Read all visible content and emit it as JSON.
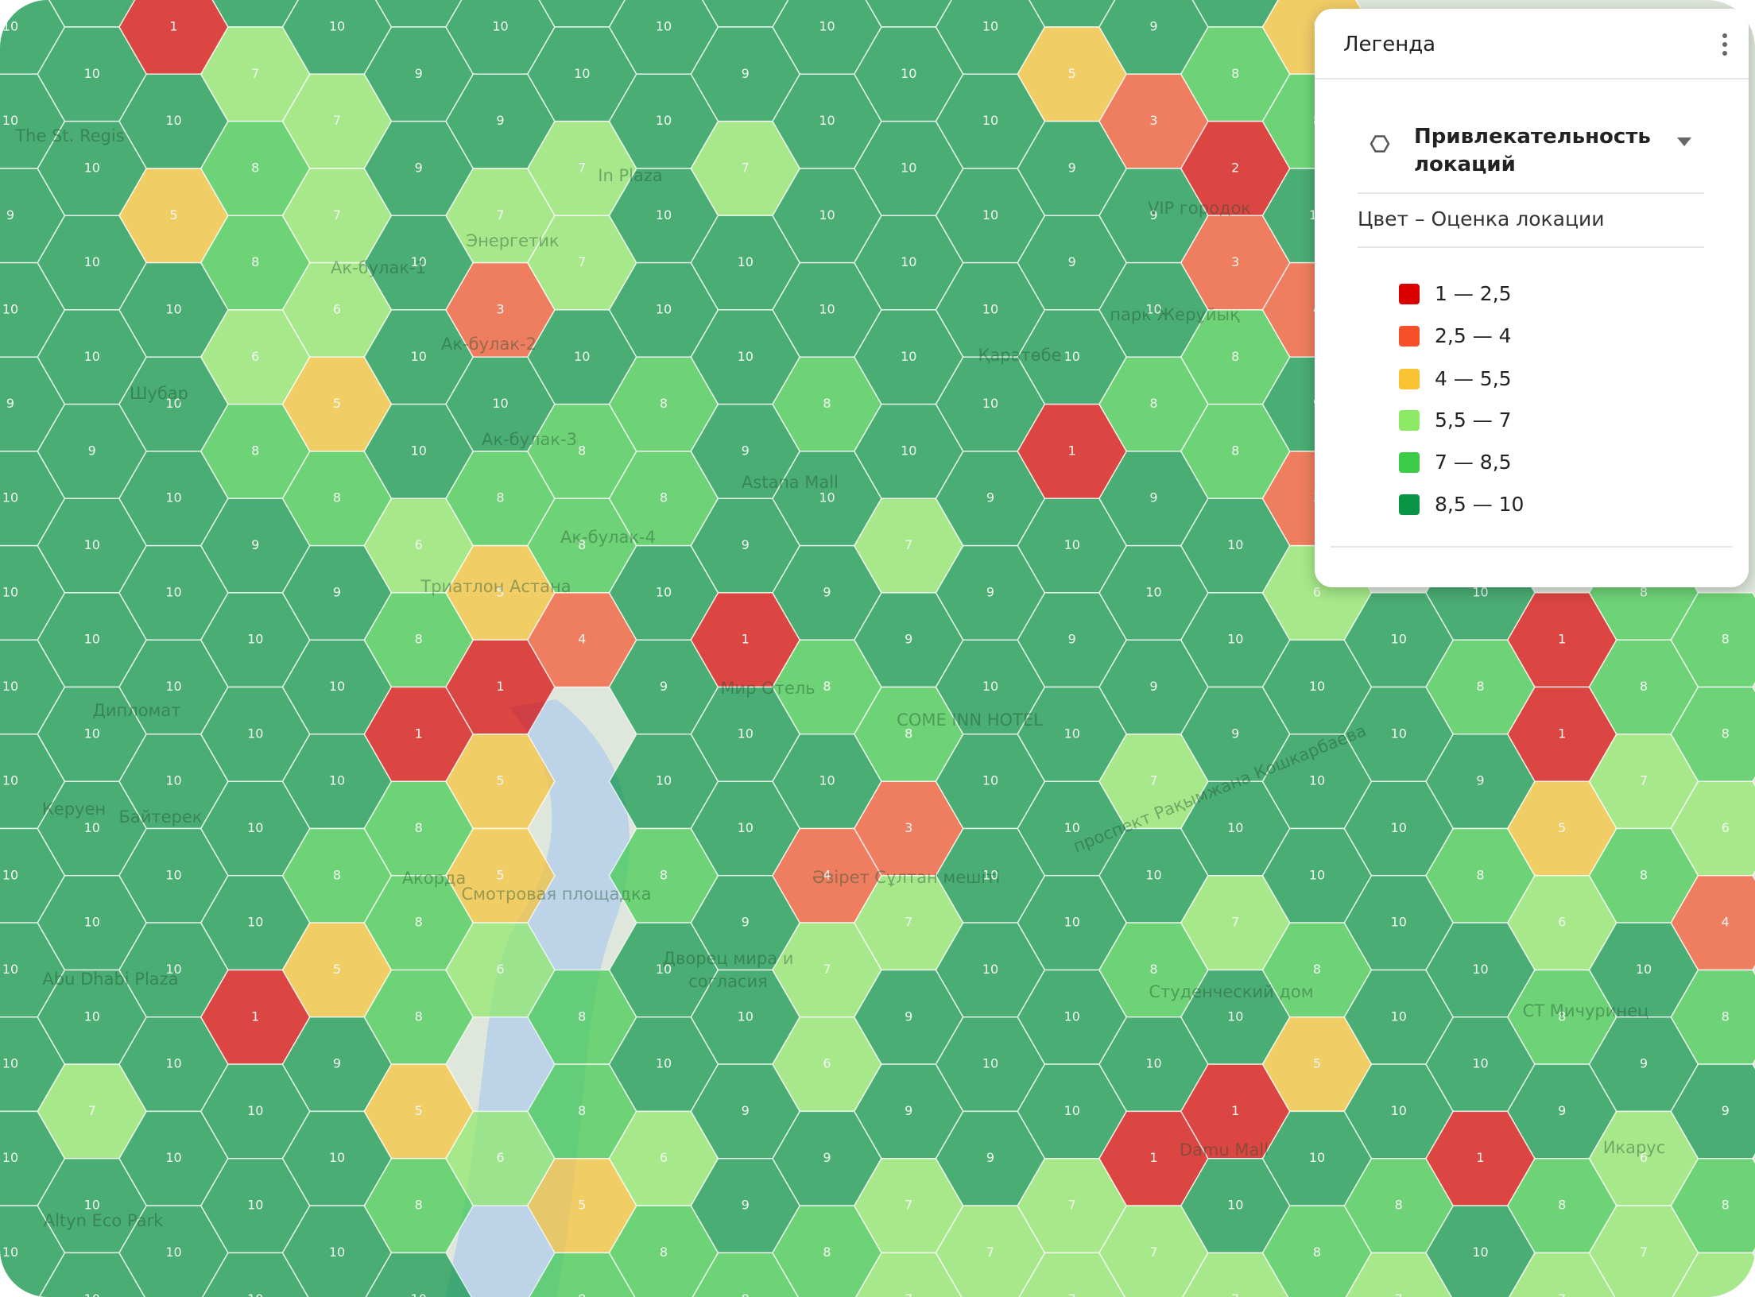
{
  "hex_grid": {
    "columns": [
      [
        10,
        10,
        9,
        10,
        9,
        10,
        10,
        10,
        10,
        10,
        10,
        10,
        10,
        10
      ],
      [
        10,
        10,
        10,
        10,
        10,
        9,
        10,
        10,
        10,
        10,
        10,
        10,
        7,
        10,
        10
      ],
      [
        1,
        10,
        5,
        10,
        10,
        10,
        10,
        10,
        10,
        10,
        10,
        10,
        10,
        10
      ],
      [
        10,
        7,
        8,
        8,
        6,
        8,
        9,
        10,
        10,
        10,
        10,
        1,
        10,
        10,
        10
      ],
      [
        10,
        7,
        7,
        6,
        5,
        8,
        9,
        10,
        10,
        8,
        5,
        9,
        10,
        10
      ],
      [
        10,
        9,
        9,
        10,
        10,
        10,
        6,
        8,
        1,
        8,
        8,
        8,
        5,
        8,
        10
      ],
      [
        10,
        9,
        7,
        3,
        10,
        8,
        5,
        1,
        5,
        5,
        6,
        null,
        6,
        null
      ],
      [
        10,
        10,
        7,
        7,
        10,
        8,
        8,
        4,
        null,
        null,
        null,
        8,
        8,
        5,
        8
      ],
      [
        10,
        10,
        10,
        10,
        8,
        8,
        10,
        9,
        10,
        8,
        10,
        10,
        6,
        8
      ],
      [
        10,
        9,
        7,
        10,
        10,
        9,
        9,
        1,
        10,
        10,
        9,
        10,
        9,
        9,
        8
      ],
      [
        10,
        10,
        10,
        10,
        8,
        10,
        9,
        8,
        10,
        4,
        7,
        6,
        9,
        8
      ],
      [
        10,
        10,
        10,
        10,
        10,
        10,
        7,
        9,
        8,
        3,
        7,
        9,
        9,
        7,
        7
      ],
      [
        10,
        10,
        10,
        10,
        10,
        9,
        9,
        10,
        10,
        10,
        10,
        10,
        9,
        7
      ],
      [
        10,
        5,
        9,
        9,
        10,
        1,
        10,
        9,
        10,
        10,
        10,
        10,
        10,
        7,
        7
      ],
      [
        9,
        3,
        9,
        10,
        8,
        9,
        10,
        9,
        7,
        10,
        8,
        10,
        1,
        7
      ],
      [
        10,
        8,
        2,
        3,
        8,
        8,
        10,
        10,
        9,
        10,
        7,
        10,
        1,
        10,
        7
      ],
      [
        5,
        8,
        10,
        4,
        9,
        3,
        6,
        10,
        10,
        10,
        8,
        5,
        10,
        8
      ],
      [
        null,
        null,
        null,
        null,
        null,
        null,
        null,
        10,
        10,
        10,
        10,
        10,
        10,
        8,
        7
      ],
      [
        null,
        null,
        null,
        null,
        null,
        null,
        10,
        8,
        9,
        8,
        10,
        10,
        1,
        10
      ],
      [
        null,
        null,
        null,
        null,
        null,
        null,
        null,
        1,
        1,
        5,
        6,
        8,
        9,
        8,
        7
      ],
      [
        null,
        null,
        null,
        null,
        null,
        null,
        8,
        8,
        7,
        8,
        10,
        9,
        6,
        7
      ],
      [
        null,
        null,
        null,
        null,
        null,
        null,
        null,
        8,
        8,
        6,
        4,
        8,
        9,
        8,
        7
      ]
    ]
  },
  "map_labels": [
    "The St. Regis",
    "Шубар",
    "Ак-булак-1",
    "Ак-булак-2",
    "Ак-булак-3",
    "Ак-булак-4",
    "Энергетик",
    "In Plaza",
    "Триатлон Астана",
    "Дипломат",
    "Керуен",
    "Байтерек",
    "Акорда",
    "Смотровая площадка",
    "Дворец мира и",
    "согласия",
    "Әзірет Сұлтан мешіті",
    "Мир Отель",
    "COME INN HOTEL",
    "Astana Mall",
    "Қаратөбе",
    "парк Жерұйық",
    "VIP городок",
    "Студенческий дом",
    "Damu Mall",
    "СТ Мичуринец",
    "Икарус",
    "Abu Dhabi Plaza",
    "Altyn Eco Park",
    "проспект Рақымжана Кошкарбаева"
  ],
  "legend": {
    "title": "Легенда",
    "layer": [
      "Привлекательность",
      "локаций"
    ],
    "subtitle": "Цвет – Оценка локации",
    "items": [
      {
        "label": "1 — 2,5",
        "min": 1,
        "max": 2.5,
        "color": "#d90000"
      },
      {
        "label": "2,5 — 4",
        "min": 2.5,
        "max": 4,
        "color": "#f5502a"
      },
      {
        "label": "4 — 5,5",
        "min": 4,
        "max": 5.5,
        "color": "#f8c233"
      },
      {
        "label": "5,5 — 7",
        "min": 5.5,
        "max": 7,
        "color": "#8eea66"
      },
      {
        "label": "7 — 8,5",
        "min": 7,
        "max": 8.5,
        "color": "#3dcb4a"
      },
      {
        "label": "8,5 — 10",
        "min": 8.5,
        "max": 10,
        "color": "#0a9446"
      }
    ]
  }
}
